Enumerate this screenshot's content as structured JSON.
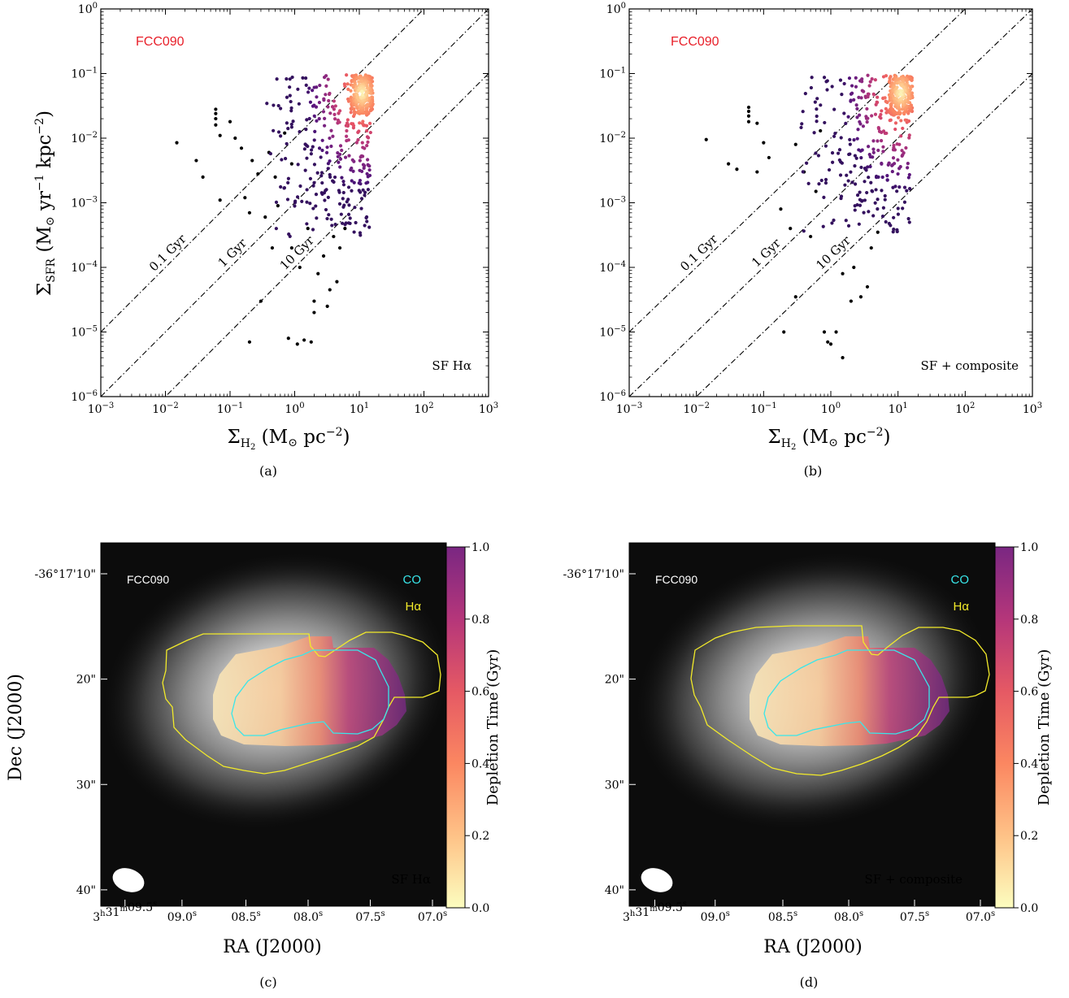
{
  "chart_data": [
    {
      "type": "scatter",
      "panel_label": "(a)",
      "galaxy_label": "FCC090",
      "corner_label": "SF Hα",
      "xlabel": "Σ_{H2} (M⊙ pc^{−2})",
      "ylabel": "Σ_{SFR} (M⊙ yr^{−1} kpc^{−2})",
      "x_scale": "log",
      "y_scale": "log",
      "xlim": [
        0.001,
        1000
      ],
      "ylim": [
        1e-06,
        1
      ],
      "x_ticks": [
        "10^{−3}",
        "10^{−2}",
        "10^{−1}",
        "10^{0}",
        "10^{1}",
        "10^{2}",
        "10^{3}"
      ],
      "y_ticks": [
        "10^{−6}",
        "10^{−5}",
        "10^{−4}",
        "10^{−3}",
        "10^{−2}",
        "10^{−1}",
        "10^{0}"
      ],
      "depletion_lines": [
        {
          "label": "0.1 Gyr",
          "tdep_gyr": 0.1
        },
        {
          "label": "1 Gyr",
          "tdep_gyr": 1
        },
        {
          "label": "10 Gyr",
          "tdep_gyr": 10
        }
      ],
      "colormap": "magma",
      "points_black": [
        [
          0.015,
          0.0085
        ],
        [
          0.03,
          0.0045
        ],
        [
          0.038,
          0.0025
        ],
        [
          0.06,
          0.028
        ],
        [
          0.06,
          0.024
        ],
        [
          0.06,
          0.02
        ],
        [
          0.06,
          0.016
        ],
        [
          0.07,
          0.011
        ],
        [
          0.07,
          0.0011
        ],
        [
          0.1,
          0.018
        ],
        [
          0.12,
          0.01
        ],
        [
          0.15,
          0.007
        ],
        [
          0.17,
          0.0012
        ],
        [
          0.2,
          0.0007
        ],
        [
          0.22,
          0.0045
        ],
        [
          0.27,
          0.0028
        ],
        [
          0.3,
          3e-05
        ],
        [
          0.2,
          7e-06
        ],
        [
          0.35,
          0.0006
        ],
        [
          0.45,
          0.0002
        ],
        [
          0.55,
          0.0009
        ],
        [
          0.8,
          8e-06
        ],
        [
          0.9,
          0.0002
        ],
        [
          1.1,
          6.5e-06
        ],
        [
          1.2,
          0.0001
        ],
        [
          1.4,
          7.5e-06
        ],
        [
          1.6,
          0.0004
        ],
        [
          1.8,
          7e-06
        ],
        [
          2,
          3e-05
        ],
        [
          2,
          2e-05
        ],
        [
          2.3,
          8e-05
        ],
        [
          2.8,
          0.00015
        ],
        [
          3.2,
          2.5e-05
        ],
        [
          3.5,
          4.5e-05
        ],
        [
          4,
          0.0003
        ],
        [
          4.5,
          6e-05
        ],
        [
          5,
          0.0002
        ],
        [
          6,
          0.0004
        ],
        [
          0.5,
          0.0025
        ],
        [
          0.4,
          0.006
        ],
        [
          0.7,
          0.012
        ],
        [
          0.9,
          0.004
        ]
      ],
      "points_colored": {
        "x_range": [
          0.3,
          15
        ],
        "y_range": [
          0.0003,
          0.095
        ],
        "density_peak": [
          11,
          0.05
        ],
        "n_points": 520
      }
    },
    {
      "type": "scatter",
      "panel_label": "(b)",
      "galaxy_label": "FCC090",
      "corner_label": "SF + composite",
      "xlabel": "Σ_{H2} (M⊙ pc^{−2})",
      "ylabel": "",
      "x_scale": "log",
      "y_scale": "log",
      "xlim": [
        0.001,
        1000
      ],
      "ylim": [
        1e-06,
        1
      ],
      "x_ticks": [
        "10^{−3}",
        "10^{−2}",
        "10^{−1}",
        "10^{0}",
        "10^{1}",
        "10^{2}",
        "10^{3}"
      ],
      "y_ticks": [
        "10^{−6}",
        "10^{−5}",
        "10^{−4}",
        "10^{−3}",
        "10^{−2}",
        "10^{−1}",
        "10^{0}"
      ],
      "depletion_lines": [
        {
          "label": "0.1 Gyr",
          "tdep_gyr": 0.1
        },
        {
          "label": "1 Gyr",
          "tdep_gyr": 1
        },
        {
          "label": "10 Gyr",
          "tdep_gyr": 10
        }
      ],
      "colormap": "magma",
      "points_black": [
        [
          0.014,
          0.0095
        ],
        [
          0.03,
          0.004
        ],
        [
          0.04,
          0.0033
        ],
        [
          0.06,
          0.03
        ],
        [
          0.06,
          0.026
        ],
        [
          0.06,
          0.022
        ],
        [
          0.06,
          0.018
        ],
        [
          0.08,
          0.017
        ],
        [
          0.1,
          0.0085
        ],
        [
          0.08,
          0.003
        ],
        [
          0.12,
          0.005
        ],
        [
          0.18,
          0.0008
        ],
        [
          0.2,
          1e-05
        ],
        [
          0.25,
          0.0004
        ],
        [
          0.3,
          3.5e-05
        ],
        [
          0.5,
          0.0003
        ],
        [
          0.8,
          1e-05
        ],
        [
          0.9,
          7e-06
        ],
        [
          1,
          6.5e-06
        ],
        [
          1.2,
          1e-05
        ],
        [
          1.5,
          4e-06
        ],
        [
          1.5,
          8e-05
        ],
        [
          2,
          3e-05
        ],
        [
          2.2,
          0.0001
        ],
        [
          2.8,
          3.5e-05
        ],
        [
          3.5,
          5e-05
        ],
        [
          4,
          0.0002
        ],
        [
          5,
          0.00035
        ],
        [
          0.4,
          0.003
        ],
        [
          0.3,
          0.008
        ],
        [
          0.6,
          0.0015
        ],
        [
          0.7,
          0.013
        ]
      ],
      "points_colored": {
        "x_range": [
          0.3,
          15
        ],
        "y_range": [
          0.0003,
          0.095
        ],
        "density_peak": [
          11,
          0.05
        ],
        "n_points": 520
      }
    },
    {
      "type": "heatmap",
      "panel_label": "(c)",
      "galaxy_label": "FCC090",
      "corner_label": "SF Hα",
      "legend": [
        "CO",
        "Hα"
      ],
      "xlabel": "RA (J2000)",
      "ylabel": "Dec (J2000)",
      "x_ticks": [
        "3^h31^m09.5^s",
        "09.0^s",
        "08.5^s",
        "08.0^s",
        "07.5^s",
        "07.0^s"
      ],
      "y_ticks": [
        "-36°17'10\"",
        "20\"",
        "30\"",
        "40\""
      ],
      "colorbar_label": "Depletion Time (Gyr)",
      "colorbar_ticks": [
        "0.0",
        "0.2",
        "0.4",
        "0.6",
        "0.8",
        "1.0"
      ],
      "colorbar_range": [
        0,
        1
      ],
      "colormap": "magma_r"
    },
    {
      "type": "heatmap",
      "panel_label": "(d)",
      "galaxy_label": "FCC090",
      "corner_label": "SF + composite",
      "legend": [
        "CO",
        "Hα"
      ],
      "xlabel": "RA (J2000)",
      "ylabel": "",
      "x_ticks": [
        "3^h31^m09.5^s",
        "09.0^s",
        "08.5^s",
        "08.0^s",
        "07.5^s",
        "07.0^s"
      ],
      "y_ticks": [
        "-36°17'10\"",
        "20\"",
        "30\"",
        "40\""
      ],
      "colorbar_label": "Depletion Time (Gyr)",
      "colorbar_ticks": [
        "0.0",
        "0.2",
        "0.4",
        "0.6",
        "0.8",
        "1.0"
      ],
      "colorbar_range": [
        0,
        1
      ],
      "colormap": "magma_r"
    }
  ],
  "colors": {
    "galaxy_label": "#e8202a",
    "co_contour": "#39e6ea",
    "halpha_contour": "#f2ea2a"
  }
}
